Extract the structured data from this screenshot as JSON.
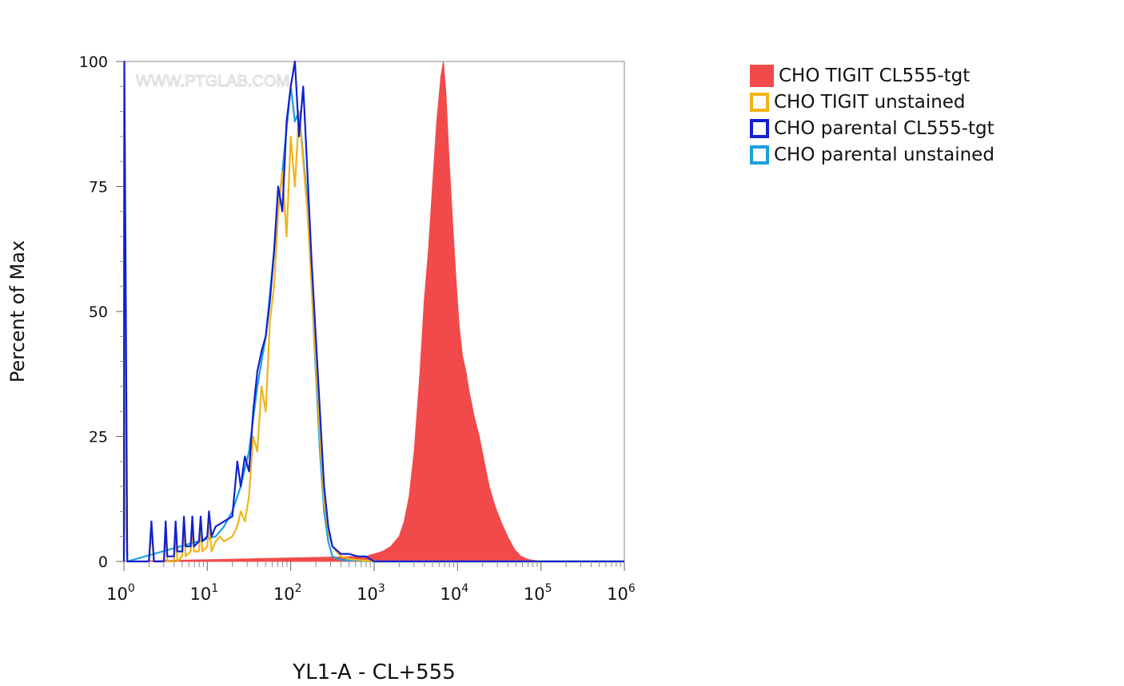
{
  "chart_data": {
    "type": "histogram",
    "xlabel": "YL1-A - CL+555",
    "ylabel": "Percent of Max",
    "x_scale": "log10",
    "xlim_log10": [
      0,
      6
    ],
    "ylim": [
      0,
      100
    ],
    "xticks": [
      {
        "base": "10",
        "exp": "0"
      },
      {
        "base": "10",
        "exp": "1"
      },
      {
        "base": "10",
        "exp": "2"
      },
      {
        "base": "10",
        "exp": "3"
      },
      {
        "base": "10",
        "exp": "4"
      },
      {
        "base": "10",
        "exp": "5"
      },
      {
        "base": "10",
        "exp": "6"
      }
    ],
    "yticks": [
      "0",
      "25",
      "50",
      "75",
      "100"
    ],
    "watermark": "WWW.PTGLAB.COM",
    "legend_position": "right",
    "series": [
      {
        "name": "CHO TIGIT CL555-tgt",
        "color": "#f24a4a",
        "filled": true,
        "log_x": [
          0,
          2.9,
          3.1,
          3.2,
          3.3,
          3.36,
          3.42,
          3.48,
          3.55,
          3.6,
          3.65,
          3.7,
          3.75,
          3.8,
          3.83,
          3.86,
          3.9,
          3.94,
          3.98,
          4.02,
          4.06,
          4.1,
          4.14,
          4.2,
          4.26,
          4.32,
          4.38,
          4.45,
          4.52,
          4.6,
          4.68,
          4.76,
          4.85,
          5,
          6
        ],
        "y": [
          0,
          1,
          2,
          3,
          5,
          8,
          13,
          22,
          38,
          52,
          62,
          75,
          88,
          97,
          100,
          94,
          80,
          68,
          57,
          47,
          41,
          38,
          34,
          29,
          25,
          20,
          15,
          11,
          8,
          5,
          2.5,
          1,
          0.4,
          0,
          0
        ]
      },
      {
        "name": "CHO TIGIT unstained",
        "color": "#f0b418",
        "filled": false,
        "log_x": [
          0,
          0.01,
          0.02,
          0.04,
          0.3,
          0.33,
          0.36,
          0.48,
          0.5,
          0.52,
          0.6,
          0.62,
          0.64,
          0.7,
          0.72,
          0.74,
          0.8,
          0.82,
          0.84,
          0.9,
          0.92,
          0.94,
          1.0,
          1.02,
          1.05,
          1.1,
          1.15,
          1.2,
          1.3,
          1.36,
          1.4,
          1.45,
          1.5,
          1.55,
          1.6,
          1.65,
          1.7,
          1.75,
          1.8,
          1.85,
          1.9,
          1.95,
          2.0,
          2.05,
          2.1,
          2.15,
          2.2,
          2.25,
          2.3,
          2.35,
          2.4,
          2.45,
          2.5,
          2.55,
          2.6,
          2.7,
          2.8,
          3.0,
          6
        ],
        "y": [
          0,
          85,
          10,
          0,
          0,
          6,
          0,
          0,
          6,
          0,
          0,
          6,
          0,
          1,
          7,
          1,
          2,
          7,
          2,
          2,
          8,
          2,
          3,
          8,
          2,
          4,
          5,
          4,
          5,
          7,
          10,
          8,
          13,
          25,
          22,
          35,
          30,
          48,
          55,
          70,
          78,
          65,
          85,
          75,
          90,
          80,
          70,
          55,
          40,
          25,
          12,
          6,
          3,
          2,
          1,
          0.5,
          0.3,
          0,
          0
        ]
      },
      {
        "name": "CHO parental CL555-tgt",
        "color": "#1020d0",
        "filled": false,
        "log_x": [
          0,
          0.005,
          0.02,
          0.04,
          0.3,
          0.33,
          0.36,
          0.48,
          0.5,
          0.52,
          0.6,
          0.62,
          0.64,
          0.7,
          0.72,
          0.74,
          0.8,
          0.82,
          0.84,
          0.9,
          0.92,
          0.94,
          1.0,
          1.02,
          1.05,
          1.1,
          1.2,
          1.3,
          1.36,
          1.4,
          1.45,
          1.5,
          1.55,
          1.6,
          1.65,
          1.7,
          1.75,
          1.8,
          1.85,
          1.9,
          1.95,
          2.0,
          2.05,
          2.1,
          2.15,
          2.2,
          2.25,
          2.3,
          2.35,
          2.4,
          2.45,
          2.5,
          2.6,
          2.7,
          2.8,
          2.9,
          3.0,
          6
        ],
        "y": [
          0,
          100,
          60,
          0,
          0,
          8,
          0,
          0,
          8,
          1,
          1,
          8,
          2,
          2,
          9,
          3,
          3,
          9,
          3,
          4,
          9,
          4,
          5,
          10,
          5,
          7,
          8,
          9,
          20,
          15,
          21,
          18,
          30,
          38,
          42,
          45,
          52,
          62,
          75,
          70,
          88,
          95,
          100,
          85,
          95,
          78,
          60,
          45,
          30,
          15,
          7,
          3,
          1.5,
          1.5,
          1,
          1,
          0,
          0
        ]
      },
      {
        "name": "CHO parental unstained",
        "color": "#1aa0dd",
        "filled": false,
        "log_x": [
          0,
          0.005,
          0.02,
          0.04,
          1.1,
          1.2,
          1.3,
          1.4,
          1.5,
          1.6,
          1.7,
          1.8,
          1.9,
          2.0,
          2.05,
          2.1,
          2.2,
          2.25,
          2.3,
          2.35,
          2.4,
          2.45,
          2.5,
          2.6,
          3,
          6
        ],
        "y": [
          0,
          90,
          20,
          0,
          5,
          7,
          10,
          15,
          22,
          35,
          45,
          62,
          78,
          95,
          88,
          90,
          72,
          55,
          38,
          22,
          10,
          4,
          1,
          0.3,
          0,
          0
        ]
      }
    ]
  }
}
